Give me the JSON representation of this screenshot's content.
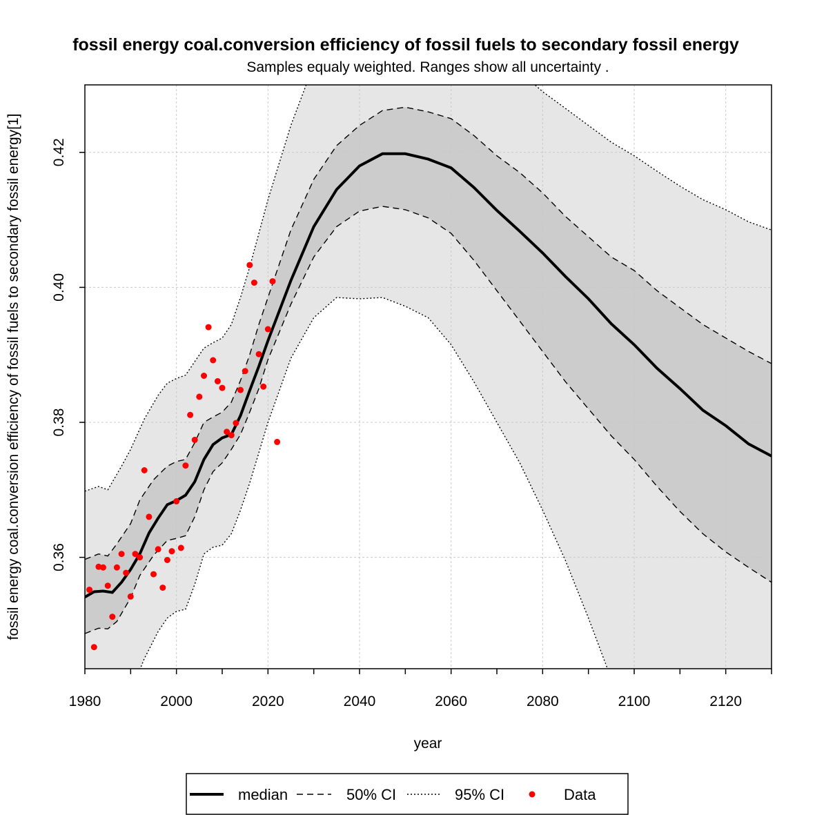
{
  "chart_data": {
    "type": "line",
    "title": "fossil energy coal.conversion efficiency of fossil fuels to secondary fossil energy",
    "subtitle": "Samples equaly weighted. Ranges show  all uncertainty .",
    "xlabel": "year",
    "ylabel": "fossil energy coal.conversion efficiency of fossil fuels to secondary fossil energy[1]",
    "xlim": [
      1980,
      2130
    ],
    "ylim": [
      0.3435,
      0.43
    ],
    "x_ticks": [
      1980,
      2000,
      2020,
      2040,
      2060,
      2080,
      2100,
      2120
    ],
    "x_tick_labels": [
      "1980",
      "2000",
      "2020",
      "2040",
      "2060",
      "2080",
      "2100",
      "2120"
    ],
    "y_ticks": [
      0.36,
      0.38,
      0.4,
      0.42
    ],
    "y_tick_labels": [
      "0.36",
      "0.38",
      "0.40",
      "0.42"
    ],
    "grid": true,
    "legend_position": "bottom",
    "legend": [
      {
        "label": "median",
        "style": "solid"
      },
      {
        "label": "50% CI",
        "style": "dashed"
      },
      {
        "label": "95% CI",
        "style": "dotted"
      },
      {
        "label": "Data",
        "style": "point"
      }
    ],
    "colors": {
      "median": "#000000",
      "band50": "#cccccc",
      "band95": "#e6e6e6",
      "data": "#ff0000",
      "grid": "#c8c8c8"
    },
    "series": [
      {
        "name": "median",
        "points": [
          [
            1980,
            0.3541
          ],
          [
            1982,
            0.3549
          ],
          [
            1984,
            0.355
          ],
          [
            1986,
            0.3548
          ],
          [
            1988,
            0.3563
          ],
          [
            1990,
            0.3582
          ],
          [
            1992,
            0.3605
          ],
          [
            1994,
            0.3636
          ],
          [
            1996,
            0.3658
          ],
          [
            1998,
            0.3678
          ],
          [
            2000,
            0.3684
          ],
          [
            2002,
            0.3692
          ],
          [
            2004,
            0.3712
          ],
          [
            2006,
            0.3745
          ],
          [
            2008,
            0.3767
          ],
          [
            2010,
            0.3777
          ],
          [
            2012,
            0.3782
          ],
          [
            2014,
            0.381
          ],
          [
            2016,
            0.3847
          ],
          [
            2018,
            0.3883
          ],
          [
            2020,
            0.3921
          ],
          [
            2025,
            0.401
          ],
          [
            2030,
            0.409
          ],
          [
            2035,
            0.4145
          ],
          [
            2040,
            0.418
          ],
          [
            2045,
            0.4198
          ],
          [
            2050,
            0.4198
          ],
          [
            2055,
            0.419
          ],
          [
            2060,
            0.4177
          ],
          [
            2065,
            0.4148
          ],
          [
            2070,
            0.4114
          ],
          [
            2075,
            0.4083
          ],
          [
            2080,
            0.4051
          ],
          [
            2085,
            0.4016
          ],
          [
            2090,
            0.3983
          ],
          [
            2095,
            0.3946
          ],
          [
            2100,
            0.3915
          ],
          [
            2105,
            0.388
          ],
          [
            2110,
            0.385
          ],
          [
            2115,
            0.3818
          ],
          [
            2120,
            0.3795
          ],
          [
            2125,
            0.3768
          ],
          [
            2130,
            0.375
          ]
        ]
      },
      {
        "name": "50% CI",
        "lower": [
          [
            1980,
            0.3487
          ],
          [
            1983,
            0.3495
          ],
          [
            1985,
            0.3494
          ],
          [
            1987,
            0.3505
          ],
          [
            1990,
            0.354
          ],
          [
            1992,
            0.3573
          ],
          [
            1995,
            0.3603
          ],
          [
            1998,
            0.3625
          ],
          [
            2000,
            0.3628
          ],
          [
            2002,
            0.3632
          ],
          [
            2004,
            0.366
          ],
          [
            2006,
            0.37
          ],
          [
            2008,
            0.3727
          ],
          [
            2010,
            0.374
          ],
          [
            2012,
            0.376
          ],
          [
            2014,
            0.3782
          ],
          [
            2016,
            0.3815
          ],
          [
            2018,
            0.385
          ],
          [
            2020,
            0.3893
          ],
          [
            2025,
            0.3975
          ],
          [
            2030,
            0.4045
          ],
          [
            2035,
            0.409
          ],
          [
            2040,
            0.4113
          ],
          [
            2045,
            0.412
          ],
          [
            2050,
            0.4115
          ],
          [
            2055,
            0.4103
          ],
          [
            2060,
            0.408
          ],
          [
            2065,
            0.404
          ],
          [
            2070,
            0.3995
          ],
          [
            2075,
            0.395
          ],
          [
            2080,
            0.3905
          ],
          [
            2085,
            0.386
          ],
          [
            2090,
            0.382
          ],
          [
            2095,
            0.378
          ],
          [
            2100,
            0.3745
          ],
          [
            2105,
            0.3705
          ],
          [
            2110,
            0.3668
          ],
          [
            2115,
            0.3635
          ],
          [
            2120,
            0.3608
          ],
          [
            2125,
            0.3585
          ],
          [
            2130,
            0.3563
          ]
        ],
        "upper": [
          [
            1980,
            0.3597
          ],
          [
            1983,
            0.3605
          ],
          [
            1985,
            0.3602
          ],
          [
            1987,
            0.362
          ],
          [
            1990,
            0.365
          ],
          [
            1992,
            0.3685
          ],
          [
            1995,
            0.3715
          ],
          [
            1998,
            0.3735
          ],
          [
            2000,
            0.3742
          ],
          [
            2002,
            0.3745
          ],
          [
            2004,
            0.377
          ],
          [
            2006,
            0.38
          ],
          [
            2008,
            0.3808
          ],
          [
            2010,
            0.3815
          ],
          [
            2012,
            0.383
          ],
          [
            2014,
            0.3862
          ],
          [
            2016,
            0.39
          ],
          [
            2018,
            0.3945
          ],
          [
            2020,
            0.3985
          ],
          [
            2025,
            0.4085
          ],
          [
            2030,
            0.416
          ],
          [
            2035,
            0.421
          ],
          [
            2040,
            0.424
          ],
          [
            2045,
            0.4262
          ],
          [
            2050,
            0.4267
          ],
          [
            2055,
            0.426
          ],
          [
            2060,
            0.425
          ],
          [
            2065,
            0.4225
          ],
          [
            2070,
            0.4195
          ],
          [
            2075,
            0.417
          ],
          [
            2080,
            0.414
          ],
          [
            2085,
            0.4105
          ],
          [
            2090,
            0.4075
          ],
          [
            2095,
            0.4045
          ],
          [
            2100,
            0.4025
          ],
          [
            2105,
            0.3995
          ],
          [
            2110,
            0.397
          ],
          [
            2115,
            0.3945
          ],
          [
            2120,
            0.3925
          ],
          [
            2125,
            0.3905
          ],
          [
            2130,
            0.3887
          ]
        ]
      },
      {
        "name": "95% CI",
        "lower": [
          [
            1990,
            0.34
          ],
          [
            1993,
            0.345
          ],
          [
            1996,
            0.349
          ],
          [
            1998,
            0.351
          ],
          [
            2000,
            0.352
          ],
          [
            2002,
            0.3523
          ],
          [
            2004,
            0.356
          ],
          [
            2006,
            0.3605
          ],
          [
            2008,
            0.3615
          ],
          [
            2010,
            0.3618
          ],
          [
            2012,
            0.3635
          ],
          [
            2014,
            0.367
          ],
          [
            2016,
            0.371
          ],
          [
            2018,
            0.3755
          ],
          [
            2020,
            0.38
          ],
          [
            2025,
            0.3895
          ],
          [
            2030,
            0.3955
          ],
          [
            2035,
            0.3985
          ],
          [
            2040,
            0.3983
          ],
          [
            2045,
            0.3985
          ],
          [
            2050,
            0.3972
          ],
          [
            2055,
            0.3955
          ],
          [
            2060,
            0.3915
          ],
          [
            2065,
            0.386
          ],
          [
            2070,
            0.38
          ],
          [
            2075,
            0.374
          ],
          [
            2080,
            0.367
          ],
          [
            2085,
            0.3595
          ],
          [
            2090,
            0.351
          ],
          [
            2095,
            0.342
          ],
          [
            2100,
            0.334
          ],
          [
            2102,
            0.33
          ]
        ],
        "upper": [
          [
            1980,
            0.3698
          ],
          [
            1983,
            0.3705
          ],
          [
            1985,
            0.37
          ],
          [
            1988,
            0.3735
          ],
          [
            1990,
            0.376
          ],
          [
            1993,
            0.3805
          ],
          [
            1996,
            0.384
          ],
          [
            1998,
            0.3858
          ],
          [
            2000,
            0.3865
          ],
          [
            2002,
            0.387
          ],
          [
            2004,
            0.389
          ],
          [
            2006,
            0.391
          ],
          [
            2008,
            0.3918
          ],
          [
            2010,
            0.3925
          ],
          [
            2012,
            0.3945
          ],
          [
            2014,
            0.3985
          ],
          [
            2016,
            0.403
          ],
          [
            2018,
            0.408
          ],
          [
            2020,
            0.413
          ],
          [
            2025,
            0.424
          ],
          [
            2030,
            0.433
          ],
          [
            2035,
            0.44
          ],
          [
            2040,
            0.445
          ],
          [
            2050,
            0.448
          ],
          [
            2060,
            0.445
          ],
          [
            2070,
            0.436
          ],
          [
            2075,
            0.432
          ],
          [
            2080,
            0.429
          ],
          [
            2085,
            0.4265
          ],
          [
            2090,
            0.424
          ],
          [
            2095,
            0.4215
          ],
          [
            2100,
            0.4195
          ],
          [
            2105,
            0.4172
          ],
          [
            2110,
            0.415
          ],
          [
            2115,
            0.413
          ],
          [
            2120,
            0.4115
          ],
          [
            2125,
            0.4097
          ],
          [
            2130,
            0.4085
          ]
        ]
      },
      {
        "name": "Data",
        "points": [
          [
            1981,
            0.3552
          ],
          [
            1982,
            0.3467
          ],
          [
            1983,
            0.3586
          ],
          [
            1984,
            0.3585
          ],
          [
            1985,
            0.3558
          ],
          [
            1986,
            0.3512
          ],
          [
            1987,
            0.3585
          ],
          [
            1988,
            0.3605
          ],
          [
            1989,
            0.3577
          ],
          [
            1990,
            0.3542
          ],
          [
            1991,
            0.3605
          ],
          [
            1992,
            0.36
          ],
          [
            1993,
            0.3729
          ],
          [
            1994,
            0.366
          ],
          [
            1995,
            0.3575
          ],
          [
            1996,
            0.3612
          ],
          [
            1997,
            0.3555
          ],
          [
            1998,
            0.3596
          ],
          [
            1999,
            0.3609
          ],
          [
            2000,
            0.3683
          ],
          [
            2001,
            0.3614
          ],
          [
            2002,
            0.3736
          ],
          [
            2003,
            0.3811
          ],
          [
            2004,
            0.3774
          ],
          [
            2005,
            0.3838
          ],
          [
            2006,
            0.3869
          ],
          [
            2007,
            0.3941
          ],
          [
            2008,
            0.3892
          ],
          [
            2009,
            0.3861
          ],
          [
            2010,
            0.3851
          ],
          [
            2011,
            0.3786
          ],
          [
            2012,
            0.3781
          ],
          [
            2013,
            0.3799
          ],
          [
            2014,
            0.3848
          ],
          [
            2015,
            0.3876
          ],
          [
            2016,
            0.4033
          ],
          [
            2017,
            0.4007
          ],
          [
            2018,
            0.3901
          ],
          [
            2019,
            0.3853
          ],
          [
            2020,
            0.3938
          ],
          [
            2021,
            0.4009
          ],
          [
            2022,
            0.3771
          ]
        ]
      }
    ]
  }
}
